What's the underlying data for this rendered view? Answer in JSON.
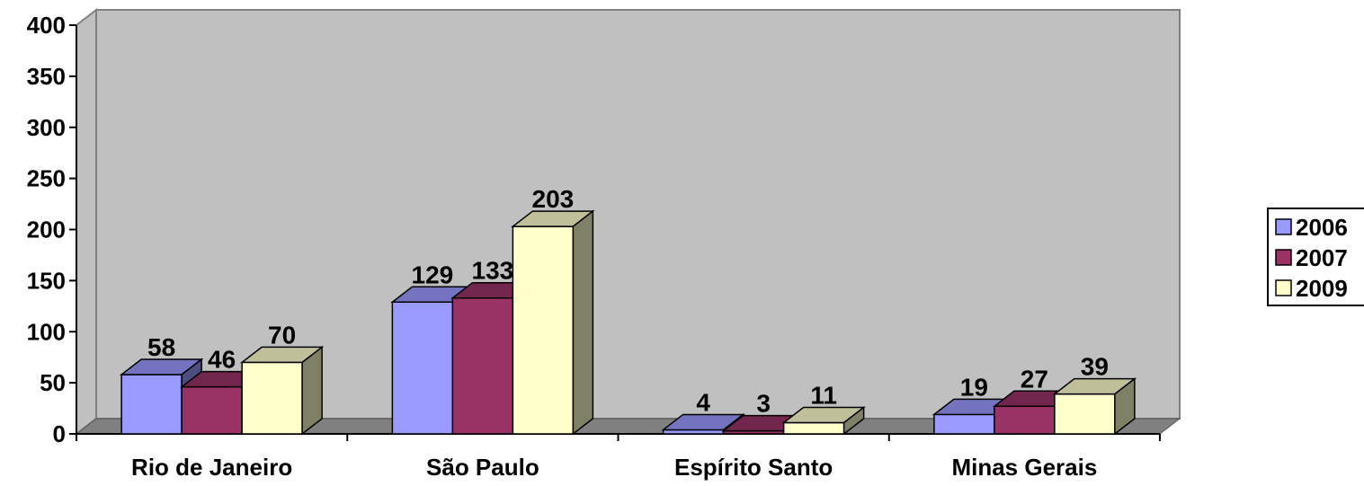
{
  "chart_data": {
    "type": "bar",
    "categories": [
      "Rio de Janeiro",
      "São Paulo",
      "Espírito Santo",
      "Minas Gerais"
    ],
    "series": [
      {
        "name": "2006",
        "values": [
          58,
          129,
          4,
          19
        ],
        "color": "#9999ff"
      },
      {
        "name": "2007",
        "values": [
          46,
          133,
          3,
          27
        ],
        "color": "#993366"
      },
      {
        "name": "2009",
        "values": [
          70,
          203,
          11,
          39
        ],
        "color": "#ffffcc"
      }
    ],
    "yticks": [
      "0",
      "50",
      "100",
      "150",
      "200",
      "250",
      "300",
      "350",
      "400"
    ],
    "ylim": [
      0,
      400
    ],
    "legend_position": "right",
    "colors": {
      "plot_wall": "#c0c0c0",
      "floor": "#808080"
    }
  }
}
